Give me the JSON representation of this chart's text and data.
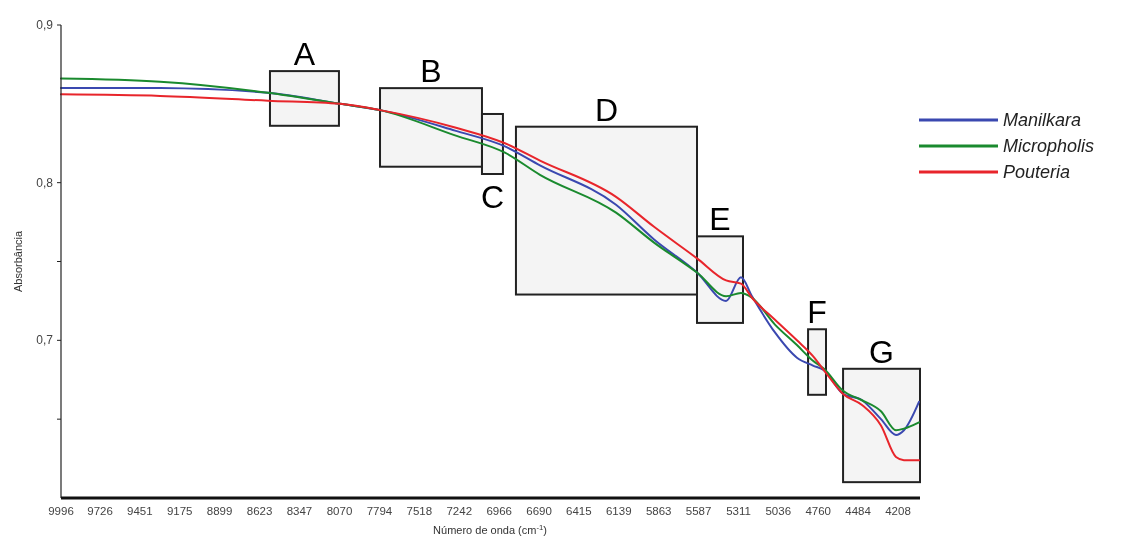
{
  "chart_data": {
    "type": "line",
    "xlabel": "Número de onda (cm$^{-1}$)",
    "ylabel": "Absorbância",
    "x": [
      9996,
      9311,
      8565,
      8067,
      7790,
      7271,
      6926,
      6684,
      6158,
      5895,
      5598,
      5397,
      5294,
      5218,
      5059,
      4907,
      4796,
      4720,
      4588,
      4457,
      4326,
      4222,
      4167,
      4063
    ],
    "series": [
      {
        "name": "Manilkara",
        "color": "#3a48b0",
        "values": [
          0.86,
          0.86,
          0.857,
          0.85,
          0.846,
          0.833,
          0.823,
          0.811,
          0.786,
          0.764,
          0.743,
          0.725,
          0.74,
          0.728,
          0.705,
          0.689,
          0.684,
          0.681,
          0.666,
          0.662,
          0.65,
          0.64,
          0.643,
          0.661
        ]
      },
      {
        "name": "Micropholis",
        "color": "#1a8a2e",
        "values": [
          0.866,
          0.864,
          0.857,
          0.85,
          0.846,
          0.83,
          0.819,
          0.805,
          0.781,
          0.762,
          0.743,
          0.728,
          0.73,
          0.727,
          0.71,
          0.697,
          0.687,
          0.682,
          0.668,
          0.662,
          0.655,
          0.643,
          0.644,
          0.648
        ]
      },
      {
        "name": "Pouteria",
        "color": "#e8252b",
        "values": [
          0.856,
          0.855,
          0.852,
          0.85,
          0.846,
          0.835,
          0.825,
          0.814,
          0.791,
          0.772,
          0.752,
          0.738,
          0.736,
          0.727,
          0.713,
          0.7,
          0.69,
          0.681,
          0.666,
          0.659,
          0.646,
          0.626,
          0.624,
          0.624
        ]
      }
    ],
    "xlim": [
      9996,
      4056
    ],
    "ylim": [
      0.6,
      0.9
    ],
    "xticks": [
      9996,
      9726,
      9451,
      9175,
      8899,
      8623,
      8347,
      8070,
      7794,
      7518,
      7242,
      6966,
      6690,
      6415,
      6139,
      5863,
      5587,
      5311,
      5036,
      4760,
      4484,
      4208
    ],
    "yticks": [
      {
        "value": 0.9,
        "label": "0,9"
      },
      {
        "value": 0.8,
        "label": "0,8"
      },
      {
        "value": 0.7,
        "label": "0,7"
      },
      {
        "value": 0.75,
        "label": null
      },
      {
        "value": 0.65,
        "label": null
      }
    ],
    "bands": [
      {
        "axis": "x",
        "from": 8551,
        "to": 8074,
        "color": "#222222",
        "label": "A"
      },
      {
        "axis": "x",
        "from": 7790,
        "to": 7085,
        "color": "#222222",
        "label": "B"
      },
      {
        "axis": "x",
        "from": 7085,
        "to": 6940,
        "color": "#222222",
        "label": "C"
      },
      {
        "axis": "x",
        "from": 6850,
        "to": 5598,
        "color": "#222222",
        "label": "D"
      },
      {
        "axis": "x",
        "from": 5598,
        "to": 5280,
        "color": "#222222",
        "label": "E"
      },
      {
        "axis": "x",
        "from": 4830,
        "to": 4706,
        "color": "#222222",
        "label": "F"
      },
      {
        "axis": "x",
        "from": 4588,
        "to": 4056,
        "color": "#222222",
        "label": "G"
      }
    ],
    "grid": false,
    "legend": "right",
    "marker": "none",
    "line_style": "solid"
  }
}
